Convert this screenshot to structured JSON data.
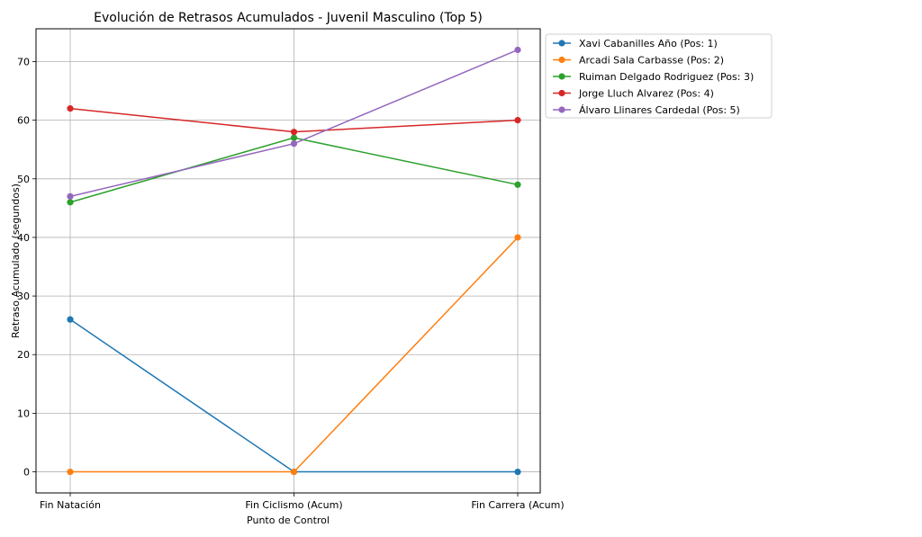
{
  "chart_data": {
    "type": "line",
    "title": "Evolución de Retrasos Acumulados - Juvenil Masculino (Top 5)",
    "xlabel": "Punto de Control",
    "ylabel": "Retraso Acumulado (segundos)",
    "categories": [
      "Fin Natación",
      "Fin Ciclismo (Acum)",
      "Fin Carrera (Acum)"
    ],
    "ylim": [
      -3.6,
      75.6
    ],
    "yticks": [
      0,
      10,
      20,
      30,
      40,
      50,
      60,
      70
    ],
    "grid": true,
    "legend_position": "outside-top-right",
    "series": [
      {
        "name": "Xavi Cabanilles Año (Pos: 1)",
        "color": "#1f77b4",
        "values": [
          26,
          0,
          0
        ]
      },
      {
        "name": "Arcadi Sala Carbasse (Pos: 2)",
        "color": "#ff7f0e",
        "values": [
          0,
          0,
          40
        ]
      },
      {
        "name": "Ruiman Delgado Rodriguez (Pos: 3)",
        "color": "#2ca02c",
        "values": [
          46,
          57,
          49
        ]
      },
      {
        "name": "Jorge Lluch Alvarez (Pos: 4)",
        "color": "#d62728",
        "values": [
          62,
          58,
          60
        ]
      },
      {
        "name": "Álvaro Llinares Cardedal (Pos: 5)",
        "color": "#9467bd",
        "values": [
          47,
          56,
          72
        ]
      }
    ]
  }
}
